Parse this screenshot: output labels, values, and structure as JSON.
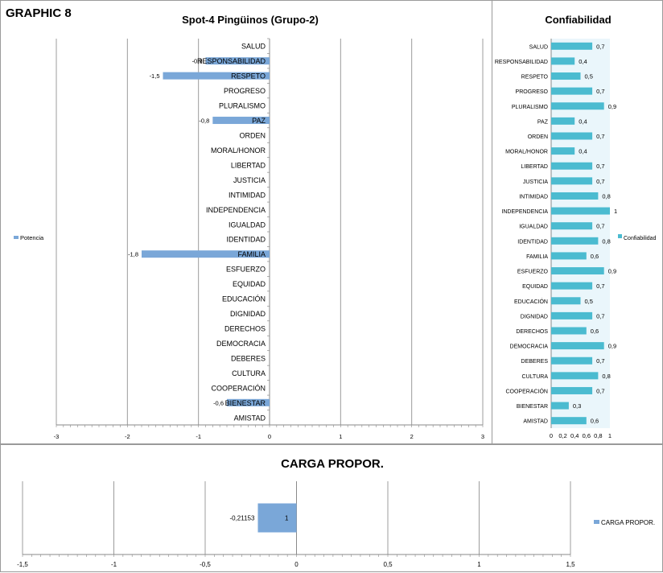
{
  "header": {
    "graphic_label": "GRAPHIC 8"
  },
  "chart_data": [
    {
      "id": "potencia",
      "type": "bar",
      "orientation": "horizontal",
      "title": "Spot-4 Pingüinos (Grupo-2)",
      "xlim": [
        -3,
        3
      ],
      "xticks": [
        "-3",
        "-2",
        "-1",
        "0",
        "1",
        "2",
        "3"
      ],
      "grid": true,
      "legend_position": "left",
      "categories": [
        "SALUD",
        "RESPONSABILIDAD",
        "RESPETO",
        "PROGRESO",
        "PLURALISMO",
        "PAZ",
        "ORDEN",
        "MORAL/HONOR",
        "LIBERTAD",
        "JUSTICIA",
        "INTIMIDAD",
        "INDEPENDENCIA",
        "IGUALDAD",
        "IDENTIDAD",
        "FAMILIA",
        "ESFUERZO",
        "EQUIDAD",
        "EDUCACIÓN",
        "DIGNIDAD",
        "DERECHOS",
        "DEMOCRACIA",
        "DEBERES",
        "CULTURA",
        "COOPERACIÓN",
        "BIENESTAR",
        "AMISTAD"
      ],
      "series": [
        {
          "name": "Potencia",
          "color": "#7aa7d8",
          "values": [
            0,
            -0.9,
            -1.5,
            0,
            0,
            -0.8,
            0,
            0,
            0,
            0,
            0,
            0,
            0,
            0,
            -1.8,
            0,
            0,
            0,
            0,
            0,
            0,
            0,
            0,
            0,
            -0.6,
            0
          ],
          "labels": [
            "",
            "-0,9",
            "-1,5",
            "",
            "",
            "-0,8",
            "",
            "",
            "",
            "",
            "",
            "",
            "",
            "",
            "-1,8",
            "",
            "",
            "",
            "",
            "",
            "",
            "",
            "",
            "",
            "-0,6",
            ""
          ]
        }
      ]
    },
    {
      "id": "confiabilidad",
      "type": "bar",
      "orientation": "horizontal",
      "title": "Confiabilidad",
      "xlim": [
        0,
        1
      ],
      "xticks": [
        "0",
        "0,2",
        "0,4",
        "0,6",
        "0,8",
        "1"
      ],
      "grid": false,
      "legend_position": "right",
      "categories": [
        "SALUD",
        "RESPONSABILIDAD",
        "RESPETO",
        "PROGRESO",
        "PLURALISMO",
        "PAZ",
        "ORDEN",
        "MORAL/HONOR",
        "LIBERTAD",
        "JUSTICIA",
        "INTIMIDAD",
        "INDEPENDENCIA",
        "IGUALDAD",
        "IDENTIDAD",
        "FAMILIA",
        "ESFUERZO",
        "EQUIDAD",
        "EDUCACIÓN",
        "DIGNIDAD",
        "DERECHOS",
        "DEMOCRACIA",
        "DEBERES",
        "CULTURA",
        "COOPERACIÓN",
        "BIENESTAR",
        "AMISTAD"
      ],
      "series": [
        {
          "name": "Confiabilidad",
          "color": "#4bbbd0",
          "values": [
            0.7,
            0.4,
            0.5,
            0.7,
            0.9,
            0.4,
            0.7,
            0.4,
            0.7,
            0.7,
            0.8,
            1,
            0.7,
            0.8,
            0.6,
            0.9,
            0.7,
            0.5,
            0.7,
            0.6,
            0.9,
            0.7,
            0.8,
            0.7,
            0.3,
            0.6
          ],
          "labels": [
            "0,7",
            "0,4",
            "0,5",
            "0,7",
            "0,9",
            "0,4",
            "0,7",
            "0,4",
            "0,7",
            "0,7",
            "0,8",
            "1",
            "0,7",
            "0,8",
            "0,6",
            "0,9",
            "0,7",
            "0,5",
            "0,7",
            "0,6",
            "0,9",
            "0,7",
            "0,8",
            "0,7",
            "0,3",
            "0,6"
          ]
        }
      ]
    },
    {
      "id": "carga",
      "type": "bar",
      "orientation": "horizontal",
      "title": "CARGA PROPOR.",
      "xlim": [
        -1.5,
        1.5
      ],
      "xticks": [
        "-1,5",
        "-1",
        "-0,5",
        "0",
        "0,5",
        "1",
        "1,5"
      ],
      "grid": true,
      "legend_position": "right",
      "categories": [
        "1"
      ],
      "series": [
        {
          "name": "CARGA PROPOR.",
          "color": "#7aa7d8",
          "values": [
            -0.21153
          ],
          "labels": [
            "-0,21153"
          ]
        }
      ]
    }
  ]
}
